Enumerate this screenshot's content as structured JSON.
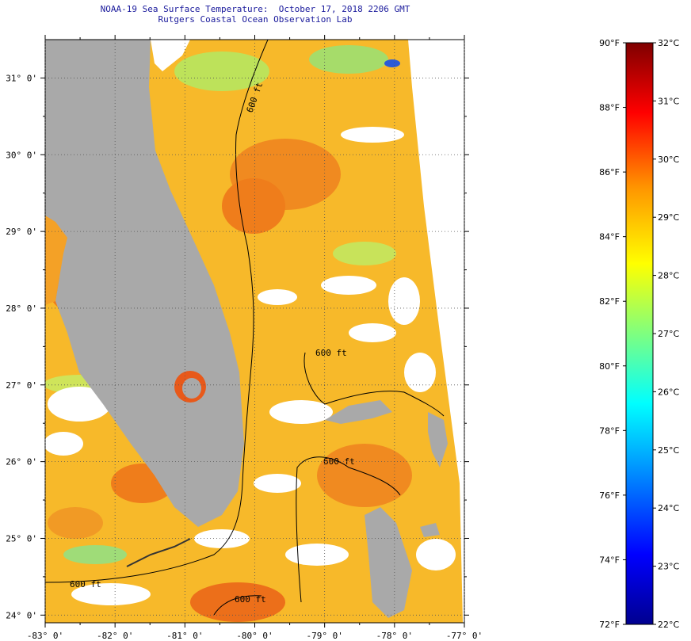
{
  "header": {
    "title_line1": "NOAA-19 Sea Surface Temperature:  October 17, 2018 2206 GMT",
    "title_line2": "Rutgers Coastal Ocean Observation Lab"
  },
  "map": {
    "region": "Florida peninsula, Florida Straits and northwest Bahamas",
    "longitude_range": [
      -83,
      -77
    ],
    "latitude_range": [
      23.9,
      31.5
    ],
    "lat_labels": [
      "31° 0'",
      "30° 0'",
      "29° 0'",
      "28° 0'",
      "27° 0'",
      "26° 0'",
      "25° 0'",
      "24° 0'"
    ],
    "lat_values": [
      31,
      30,
      29,
      28,
      27,
      26,
      25,
      24
    ],
    "lon_labels": [
      "-83° 0'",
      "-82° 0'",
      "-81° 0'",
      "-80° 0'",
      "-79° 0'",
      "-78° 0'",
      "-77° 0'"
    ],
    "lon_values": [
      -83,
      -82,
      -81,
      -80,
      -79,
      -78,
      -77
    ],
    "isobath_label": "600 ft",
    "colors": {
      "land": "#a9a9a9",
      "cloud": "#ffffff",
      "warm_sea": "#f28a1c",
      "sea_base": "#f7b92a"
    }
  },
  "colorbar": {
    "fahrenheit_labels": [
      "90°F",
      "88°F",
      "86°F",
      "84°F",
      "82°F",
      "80°F",
      "78°F",
      "76°F",
      "74°F",
      "72°F"
    ],
    "celsius_labels": [
      "32°C",
      "31°C",
      "30°C",
      "29°C",
      "28°C",
      "27°C",
      "26°C",
      "25°C",
      "24°C",
      "23°C",
      "22°C"
    ],
    "f_range": [
      72,
      90
    ],
    "c_range": [
      22,
      32
    ]
  }
}
